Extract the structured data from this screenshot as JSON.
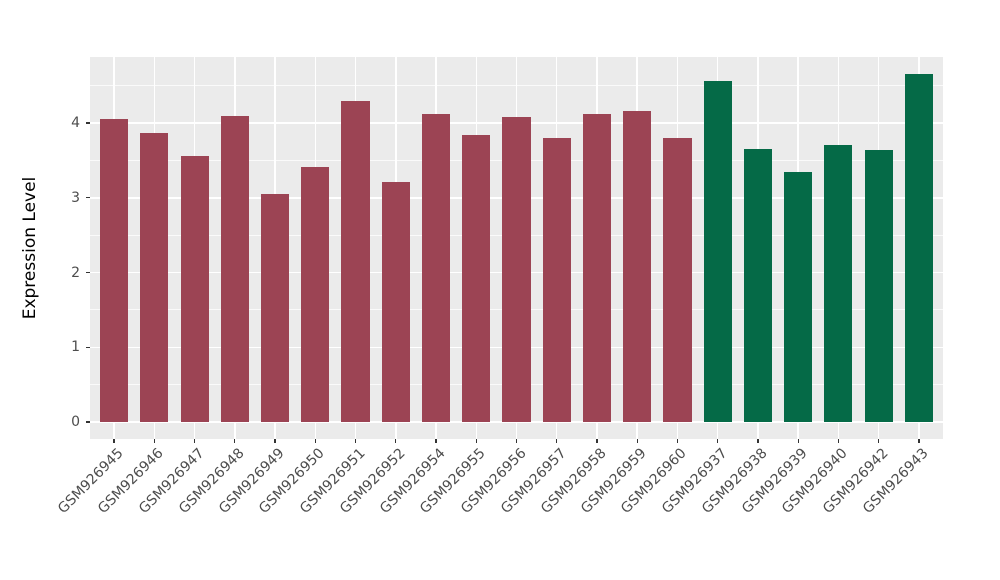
{
  "figure": {
    "background": "#FFFFFF",
    "panel_background": "#EBEBEB",
    "gridline_color": "#FFFFFF",
    "tick_color": "#333333",
    "tick_label_color": "#4D4D4D",
    "axis_title_color": "#000000"
  },
  "chart_data": {
    "type": "bar",
    "title": "",
    "xlabel": "",
    "ylabel": "Expression Level",
    "ylim": [
      -0.227,
      4.883
    ],
    "yticks": [
      0,
      1,
      2,
      3,
      4
    ],
    "yticks_minor": [
      0.5,
      1.5,
      2.5,
      3.5,
      4.5
    ],
    "grid": "on",
    "legend": "none",
    "bar_width_fraction": 0.7,
    "palette": {
      "group1": "#9C4454",
      "group2": "#056A47"
    },
    "bars": [
      {
        "label": "GSM926945",
        "value": 4.05,
        "group": "group1"
      },
      {
        "label": "GSM926946",
        "value": 3.87,
        "group": "group1"
      },
      {
        "label": "GSM926947",
        "value": 3.56,
        "group": "group1"
      },
      {
        "label": "GSM926948",
        "value": 4.1,
        "group": "group1"
      },
      {
        "label": "GSM926949",
        "value": 3.05,
        "group": "group1"
      },
      {
        "label": "GSM926950",
        "value": 3.41,
        "group": "group1"
      },
      {
        "label": "GSM926951",
        "value": 4.29,
        "group": "group1"
      },
      {
        "label": "GSM926952",
        "value": 3.21,
        "group": "group1"
      },
      {
        "label": "GSM926954",
        "value": 4.12,
        "group": "group1"
      },
      {
        "label": "GSM926955",
        "value": 3.84,
        "group": "group1"
      },
      {
        "label": "GSM926956",
        "value": 4.08,
        "group": "group1"
      },
      {
        "label": "GSM926957",
        "value": 3.8,
        "group": "group1"
      },
      {
        "label": "GSM926958",
        "value": 4.12,
        "group": "group1"
      },
      {
        "label": "GSM926959",
        "value": 4.16,
        "group": "group1"
      },
      {
        "label": "GSM926960",
        "value": 3.8,
        "group": "group1"
      },
      {
        "label": "GSM926937",
        "value": 4.56,
        "group": "group2"
      },
      {
        "label": "GSM926938",
        "value": 3.65,
        "group": "group2"
      },
      {
        "label": "GSM926939",
        "value": 3.34,
        "group": "group2"
      },
      {
        "label": "GSM926940",
        "value": 3.71,
        "group": "group2"
      },
      {
        "label": "GSM926942",
        "value": 3.64,
        "group": "group2"
      },
      {
        "label": "GSM926943",
        "value": 4.66,
        "group": "group2"
      }
    ]
  }
}
